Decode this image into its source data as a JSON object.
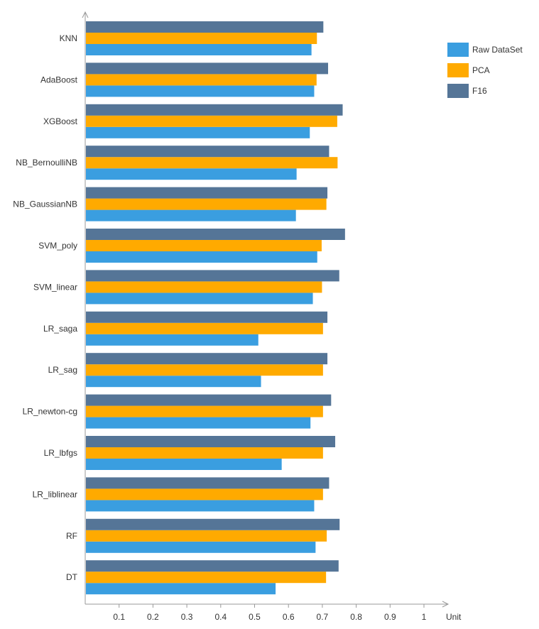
{
  "chart_data": {
    "type": "bar",
    "orientation": "horizontal",
    "categories": [
      "KNN",
      "AdaBoost",
      "XGBoost",
      "NB_BernoulliNB",
      "NB_GaussianNB",
      "SVM_poly",
      "SVM_linear",
      "LR_saga",
      "LR_sag",
      "LR_newton-cg",
      "LR_lbfgs",
      "LR_liblinear",
      "RF",
      "DT"
    ],
    "series": [
      {
        "name": "Raw DataSet",
        "color": "#3A9EE0",
        "values": [
          0.668,
          0.676,
          0.663,
          0.624,
          0.622,
          0.685,
          0.672,
          0.511,
          0.519,
          0.665,
          0.58,
          0.676,
          0.68,
          0.562
        ]
      },
      {
        "name": "PCA",
        "color": "#FFAA00",
        "values": [
          0.684,
          0.683,
          0.744,
          0.745,
          0.712,
          0.698,
          0.699,
          0.702,
          0.702,
          0.702,
          0.702,
          0.702,
          0.713,
          0.711
        ]
      },
      {
        "name": "F16",
        "color": "#557597",
        "values": [
          0.703,
          0.717,
          0.76,
          0.72,
          0.715,
          0.767,
          0.75,
          0.715,
          0.715,
          0.726,
          0.738,
          0.72,
          0.751,
          0.748
        ]
      }
    ],
    "xticks": [
      "0.1",
      "0.2",
      "0.3",
      "0.4",
      "0.5",
      "0.6",
      "0.7",
      "0.8",
      "0.9",
      "1"
    ],
    "xlim": [
      0,
      1.06
    ],
    "xlabel": "Unit",
    "legend_position": "top-right",
    "grid": false
  }
}
